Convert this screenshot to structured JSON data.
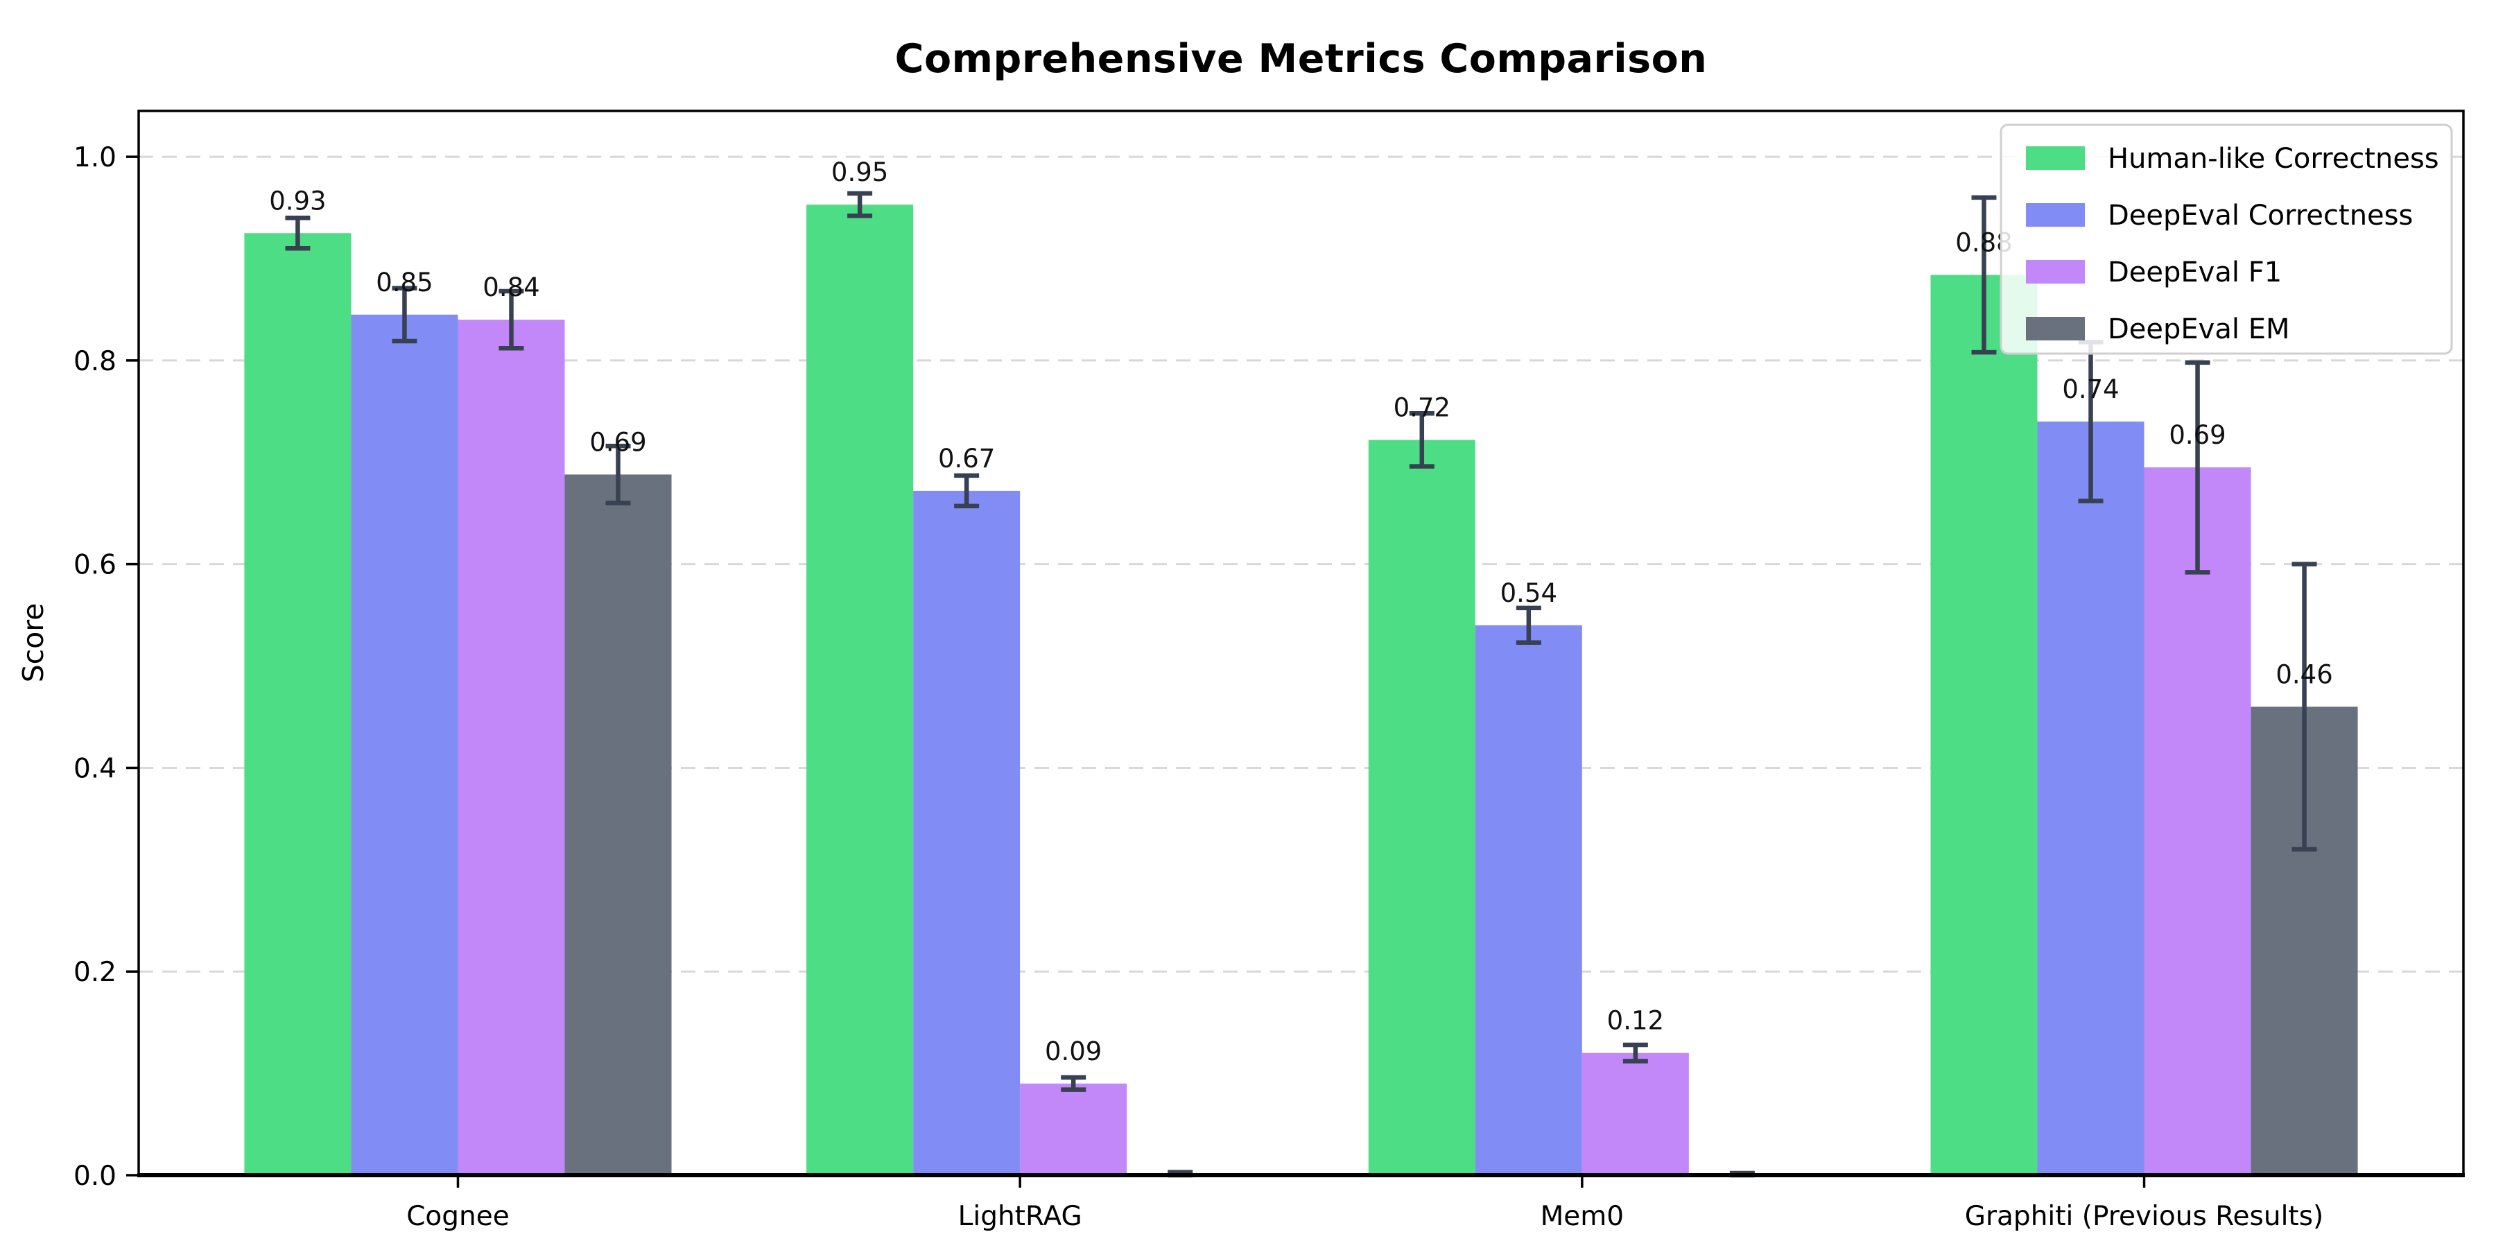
{
  "chart_data": {
    "type": "bar",
    "title": "Comprehensive Metrics Comparison",
    "ylabel": "Score",
    "xlabel": "",
    "categories": [
      "Cognee",
      "LightRAG",
      "Mem0",
      "Graphiti (Previous Results)"
    ],
    "series": [
      {
        "name": "Human-like Correctness",
        "color": "#4ddd85",
        "values": [
          0.925,
          0.953,
          0.722,
          0.884
        ],
        "errors": [
          0.015,
          0.011,
          0.026,
          0.076
        ],
        "labels": [
          "0.93",
          "0.95",
          "0.72",
          "0.88"
        ]
      },
      {
        "name": "DeepEval Correctness",
        "color": "#818cf5",
        "values": [
          0.845,
          0.672,
          0.54,
          0.74
        ],
        "errors": [
          0.026,
          0.015,
          0.017,
          0.078
        ],
        "labels": [
          "0.85",
          "0.67",
          "0.54",
          "0.74"
        ]
      },
      {
        "name": "DeepEval F1",
        "color": "#c287f8",
        "values": [
          0.84,
          0.09,
          0.12,
          0.695
        ],
        "errors": [
          0.028,
          0.006,
          0.008,
          0.103
        ],
        "labels": [
          "0.84",
          "0.09",
          "0.12",
          "0.69"
        ]
      },
      {
        "name": "DeepEval EM",
        "color": "#6a717e",
        "values": [
          0.688,
          0.0,
          0.0,
          0.46
        ],
        "errors": [
          0.028,
          0.003,
          0.002,
          0.14
        ],
        "labels": [
          "0.69",
          "",
          "",
          "0.46"
        ]
      }
    ],
    "yticks": [
      0.0,
      0.2,
      0.4,
      0.6,
      0.8,
      1.0
    ],
    "ytick_labels": [
      "0.0",
      "0.2",
      "0.4",
      "0.6",
      "0.8",
      "1.0"
    ],
    "ylim": [
      0,
      1.045
    ],
    "grid": "horizontal dashed",
    "legend_position": "upper right",
    "colors": {
      "error_bar": "#374151",
      "grid": "#d8d8d8",
      "axis": "#000000",
      "text": "#111111",
      "legend_border": "#cfcfcf",
      "legend_background": "rgba(255,255,255,0.85)",
      "background": "#ffffff"
    }
  }
}
